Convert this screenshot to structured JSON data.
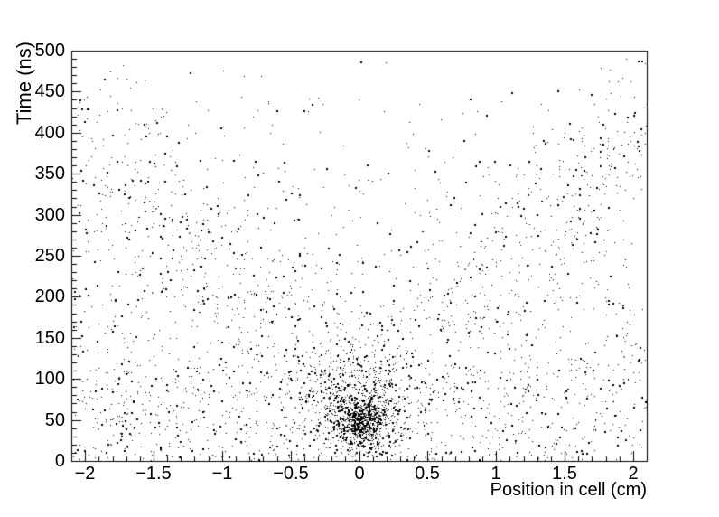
{
  "window": {
    "background": "#ffffff"
  },
  "chart_data": {
    "type": "scatter",
    "title": "",
    "xlabel": "Position in cell (cm)",
    "ylabel": "Time (ns)",
    "xlim": [
      -2.1,
      2.1
    ],
    "ylim": [
      0,
      500
    ],
    "grid": false,
    "legend": false,
    "background": "#ffffff",
    "axis_color": "#000000",
    "marker_color": "#000000",
    "x_axis": {
      "tick_values": [
        -2,
        -1.5,
        -1,
        -0.5,
        0,
        0.5,
        1,
        1.5,
        2
      ],
      "tick_labels": [
        "−2",
        "−1.5",
        "−1",
        "−0.5",
        "0",
        "0.5",
        "1",
        "1.5",
        "2"
      ],
      "minor_tick_step": 0.1
    },
    "y_axis": {
      "tick_values": [
        0,
        50,
        100,
        150,
        200,
        250,
        300,
        350,
        400,
        450,
        500
      ],
      "tick_labels": [
        "0",
        "50",
        "100",
        "150",
        "200",
        "250",
        "300",
        "350",
        "400",
        "450",
        "500"
      ],
      "minor_tick_step": 10
    },
    "content_description": "Drift-chamber style scatter of hit time vs track position in cell: dense core near (0 cm, 50 ns), diffuse V-shaped correlation band rising to ~420 ns at |position|=2 cm, falling uniform background densest at low times, near-empty region at top center.",
    "point_generation": {
      "seed": 1337,
      "marker_size_px": 1,
      "big_marker_fraction": 0.22,
      "components": [
        {
          "name": "background-falling",
          "type": "falling",
          "n": 1500
        },
        {
          "name": "v-correlation-band",
          "type": "vband",
          "n": 800,
          "slope": 175,
          "intercept": 55,
          "sigma": 62,
          "xmax": 2.1
        },
        {
          "name": "core-cluster",
          "type": "gauss",
          "n": 560,
          "mx": 0.03,
          "sx": 0.09,
          "my": 46,
          "sy": 14,
          "tmin": 6
        },
        {
          "name": "core-wide",
          "type": "gauss",
          "n": 300,
          "mx": 0.0,
          "sx": 0.16,
          "my": 58,
          "sy": 22,
          "tmin": 6
        },
        {
          "name": "core-halo",
          "type": "gauss",
          "n": 380,
          "mx": 0.0,
          "sx": 0.2,
          "my": 85,
          "sy": 40,
          "tmin": 8,
          "tmax": 215
        },
        {
          "name": "low-time-band",
          "type": "uniform",
          "n": 380,
          "x": [
            -2.1,
            2.1
          ],
          "y": [
            2,
            115
          ]
        }
      ]
    }
  }
}
